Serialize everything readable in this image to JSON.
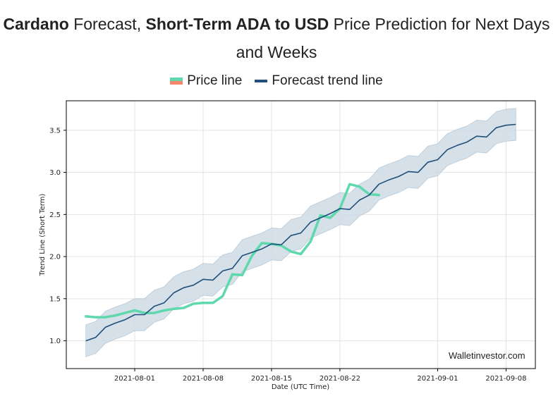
{
  "title": {
    "bold1": "Cardano",
    "text1": " Forecast, ",
    "bold2": "Short-Term ADA to USD",
    "text2": " Price Prediction for Next Days and Weeks"
  },
  "legend": {
    "price_label": "Price line",
    "trend_label": "Forecast trend line"
  },
  "watermark": "Walletinvestor.com",
  "colors": {
    "price": "#5fd8ad",
    "price_alt": "#f4876b",
    "trend": "#1f4f7a",
    "band": "#cfdbe5",
    "grid": "#e3e3e3"
  },
  "chart_data": {
    "type": "line",
    "xlabel": "Date (UTC Time)",
    "ylabel": "Trend Line (Short Term)",
    "x_ticks": [
      "2021-08-01",
      "2021-08-08",
      "2021-08-15",
      "2021-08-22",
      "2021-09-01",
      "2021-09-08"
    ],
    "y_ticks": [
      1.0,
      1.5,
      2.0,
      2.5,
      3.0,
      3.5
    ],
    "xlim": [
      "2021-07-25",
      "2021-09-11"
    ],
    "ylim": [
      0.67,
      3.85
    ],
    "grid": true,
    "series": [
      {
        "name": "Price line",
        "x": [
          "2021-07-27",
          "2021-07-28",
          "2021-07-29",
          "2021-07-30",
          "2021-07-31",
          "2021-08-01",
          "2021-08-02",
          "2021-08-03",
          "2021-08-04",
          "2021-08-05",
          "2021-08-06",
          "2021-08-07",
          "2021-08-08",
          "2021-08-09",
          "2021-08-10",
          "2021-08-11",
          "2021-08-12",
          "2021-08-13",
          "2021-08-14",
          "2021-08-15",
          "2021-08-16",
          "2021-08-17",
          "2021-08-18",
          "2021-08-19",
          "2021-08-20",
          "2021-08-21",
          "2021-08-22",
          "2021-08-23",
          "2021-08-24",
          "2021-08-25",
          "2021-08-26"
        ],
        "values": [
          1.29,
          1.28,
          1.28,
          1.3,
          1.33,
          1.36,
          1.33,
          1.33,
          1.36,
          1.38,
          1.39,
          1.44,
          1.45,
          1.45,
          1.53,
          1.79,
          1.78,
          2.01,
          2.16,
          2.15,
          2.13,
          2.06,
          2.03,
          2.18,
          2.49,
          2.46,
          2.57,
          2.86,
          2.83,
          2.74,
          2.73
        ]
      },
      {
        "name": "Forecast trend line",
        "x": [
          "2021-07-27",
          "2021-07-28",
          "2021-07-29",
          "2021-07-30",
          "2021-07-31",
          "2021-08-01",
          "2021-08-02",
          "2021-08-03",
          "2021-08-04",
          "2021-08-05",
          "2021-08-06",
          "2021-08-07",
          "2021-08-08",
          "2021-08-09",
          "2021-08-10",
          "2021-08-11",
          "2021-08-12",
          "2021-08-13",
          "2021-08-14",
          "2021-08-15",
          "2021-08-16",
          "2021-08-17",
          "2021-08-18",
          "2021-08-19",
          "2021-08-20",
          "2021-08-21",
          "2021-08-22",
          "2021-08-23",
          "2021-08-24",
          "2021-08-25",
          "2021-08-26",
          "2021-08-27",
          "2021-08-28",
          "2021-08-29",
          "2021-08-30",
          "2021-08-31",
          "2021-09-01",
          "2021-09-02",
          "2021-09-03",
          "2021-09-04",
          "2021-09-05",
          "2021-09-06",
          "2021-09-07",
          "2021-09-08",
          "2021-09-09"
        ],
        "values": [
          1.0,
          1.04,
          1.16,
          1.21,
          1.25,
          1.31,
          1.31,
          1.41,
          1.45,
          1.57,
          1.63,
          1.66,
          1.73,
          1.72,
          1.83,
          1.86,
          2.01,
          2.05,
          2.09,
          2.15,
          2.14,
          2.25,
          2.28,
          2.41,
          2.46,
          2.51,
          2.57,
          2.56,
          2.67,
          2.73,
          2.86,
          2.91,
          2.95,
          3.01,
          3.0,
          3.12,
          3.15,
          3.27,
          3.32,
          3.36,
          3.43,
          3.42,
          3.53,
          3.56,
          3.57
        ]
      }
    ],
    "band": {
      "upper": [
        1.19,
        1.23,
        1.35,
        1.4,
        1.44,
        1.5,
        1.5,
        1.6,
        1.64,
        1.76,
        1.82,
        1.85,
        1.92,
        1.91,
        2.02,
        2.05,
        2.2,
        2.24,
        2.28,
        2.34,
        2.33,
        2.44,
        2.47,
        2.6,
        2.65,
        2.7,
        2.76,
        2.75,
        2.86,
        2.92,
        3.05,
        3.1,
        3.14,
        3.2,
        3.19,
        3.31,
        3.34,
        3.46,
        3.51,
        3.55,
        3.62,
        3.61,
        3.72,
        3.75,
        3.76
      ],
      "lower": [
        0.81,
        0.85,
        0.97,
        1.02,
        1.06,
        1.12,
        1.12,
        1.22,
        1.26,
        1.38,
        1.44,
        1.47,
        1.54,
        1.53,
        1.64,
        1.67,
        1.82,
        1.86,
        1.9,
        1.96,
        1.95,
        2.06,
        2.09,
        2.22,
        2.27,
        2.32,
        2.38,
        2.37,
        2.48,
        2.54,
        2.67,
        2.72,
        2.76,
        2.82,
        2.81,
        2.93,
        2.96,
        3.08,
        3.13,
        3.17,
        3.24,
        3.23,
        3.34,
        3.37,
        3.38
      ]
    }
  }
}
